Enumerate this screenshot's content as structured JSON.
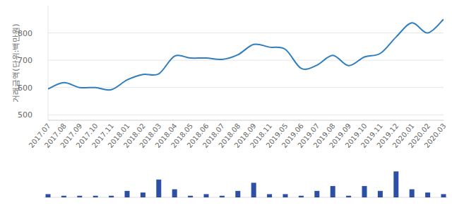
{
  "chart_data": {
    "type": "line",
    "y_label": "거래금액(단위:백만원)",
    "categories": [
      "2017.07",
      "2017.08",
      "2017.09",
      "2017.10",
      "2017.11",
      "2018.01",
      "2018.02",
      "2018.03",
      "2018.04",
      "2018.05",
      "2018.06",
      "2018.07",
      "2018.08",
      "2018.09",
      "2018.11",
      "2019.05",
      "2019.06",
      "2019.07",
      "2019.08",
      "2019.09",
      "2019.10",
      "2019.11",
      "2019.12",
      "2020.01",
      "2020.02",
      "2020.03"
    ],
    "series": [
      {
        "type": "line",
        "color": "#2f7ebf",
        "values": [
          595,
          618,
          600,
          600,
          592,
          628,
          648,
          650,
          715,
          708,
          708,
          703,
          720,
          758,
          748,
          740,
          670,
          682,
          718,
          680,
          712,
          725,
          785,
          837,
          800,
          850
        ]
      },
      {
        "type": "bar",
        "color": "#2d4fa6",
        "axis": "y2",
        "values": [
          2,
          1,
          1,
          1,
          1,
          4,
          3,
          11,
          5,
          1,
          2,
          1,
          4,
          9,
          2,
          2,
          1,
          4,
          7,
          1,
          7,
          4,
          16,
          5,
          3,
          2
        ]
      }
    ],
    "ylim": [
      480,
      900
    ],
    "yticks": [
      500,
      600,
      700,
      800
    ],
    "y2lim": [
      0,
      17
    ],
    "y2ticks": [],
    "grid": true,
    "tick_labels": "y"
  }
}
